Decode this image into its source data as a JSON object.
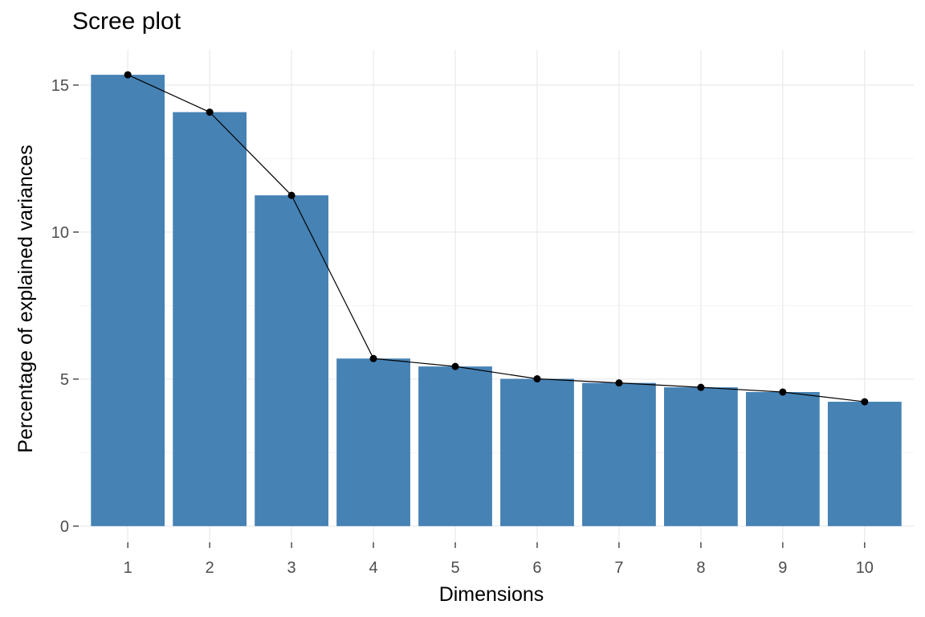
{
  "chart_data": {
    "type": "bar",
    "title": "Scree plot",
    "xlabel": "Dimensions",
    "ylabel": "Percentage of explained variances",
    "categories": [
      "1",
      "2",
      "3",
      "4",
      "5",
      "6",
      "7",
      "8",
      "9",
      "10"
    ],
    "values": [
      15.35,
      14.08,
      11.25,
      5.7,
      5.43,
      5.01,
      4.87,
      4.72,
      4.56,
      4.23
    ],
    "line_overlay": true,
    "ylim": [
      -0.55,
      16.2
    ],
    "yticks": [
      0,
      5,
      10,
      15
    ],
    "grid": true,
    "colors": {
      "bar": "#4682b4",
      "line": "#000000",
      "grid": "#ebebeb"
    }
  }
}
